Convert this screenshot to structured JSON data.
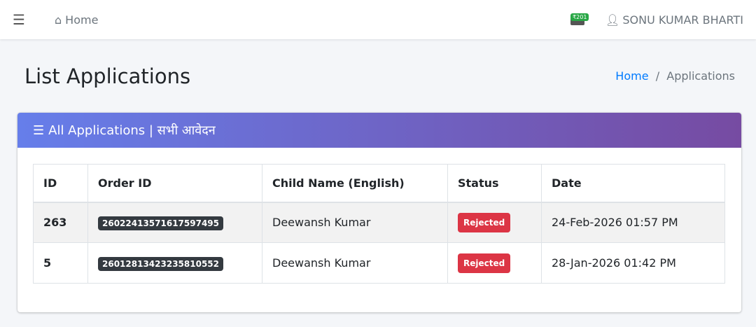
{
  "nav": {
    "home": "Home",
    "wallet": "₹201",
    "user": "SONU KUMAR BHARTI"
  },
  "page": {
    "title": "List Applications",
    "breadcrumb": [
      "Home",
      "Applications"
    ]
  },
  "card": {
    "title": "All Applications | सभी आवेदन"
  },
  "table": {
    "headers": [
      "ID",
      "Order ID",
      "Child Name (English)",
      "Status",
      "Date"
    ],
    "rows": [
      {
        "id": "263",
        "order": "26022413571617597495",
        "name": "Deewansh Kumar",
        "status": "Rejected",
        "date": "24-Feb-2026 01:57 PM"
      },
      {
        "id": "5",
        "order": "26012813423235810552",
        "name": "Deewansh Kumar",
        "status": "Rejected",
        "date": "28-Jan-2026 01:42 PM"
      }
    ]
  },
  "colors": {
    "rejected": "#dc3545",
    "wallet": "#28a745"
  }
}
